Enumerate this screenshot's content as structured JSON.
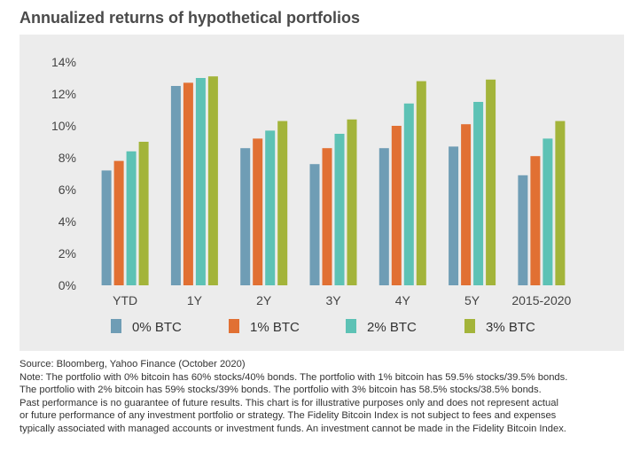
{
  "title": "Annualized returns of hypothetical portfolios",
  "chart_data": {
    "type": "bar",
    "title": "Annualized returns of hypothetical portfolios",
    "categories": [
      "YTD",
      "1Y",
      "2Y",
      "3Y",
      "4Y",
      "5Y",
      "2015-2020"
    ],
    "series": [
      {
        "name": "0% BTC",
        "color": "#6f9db5",
        "values": [
          7.2,
          12.5,
          8.6,
          7.6,
          8.6,
          8.7,
          6.9
        ]
      },
      {
        "name": "1% BTC",
        "color": "#e17033",
        "values": [
          7.8,
          12.7,
          9.2,
          8.6,
          10.0,
          10.1,
          8.1
        ]
      },
      {
        "name": "2% BTC",
        "color": "#5dc2b5",
        "values": [
          8.4,
          13.0,
          9.7,
          9.5,
          11.4,
          11.5,
          9.2
        ]
      },
      {
        "name": "3% BTC",
        "color": "#a3b43a",
        "values": [
          9.0,
          13.1,
          10.3,
          10.4,
          12.8,
          12.9,
          10.3
        ]
      }
    ],
    "y_ticks": [
      "0%",
      "2%",
      "4%",
      "6%",
      "8%",
      "10%",
      "12%",
      "14%"
    ],
    "ylim": [
      0,
      14
    ],
    "grid": false,
    "legend_position": "bottom"
  },
  "notes": {
    "source": "Source: Bloomberg, Yahoo Finance (October 2020)",
    "lines": [
      "Note: The portfolio with 0% bitcoin has 60% stocks/40% bonds. The portfolio with 1% bitcoin has 59.5% stocks/39.5% bonds.",
      "The portfolio with 2% bitcoin has 59% stocks/39% bonds. The portfolio with 3% bitcoin has 58.5% stocks/38.5% bonds.",
      "Past performance is no guarantee of future results. This chart is for illustrative purposes only and does not represent actual",
      "or future performance of any investment portfolio or strategy. The Fidelity Bitcoin Index is not subject to fees and expenses",
      "typically associated with managed accounts or investment funds. An investment cannot be made in the Fidelity Bitcoin Index."
    ]
  }
}
